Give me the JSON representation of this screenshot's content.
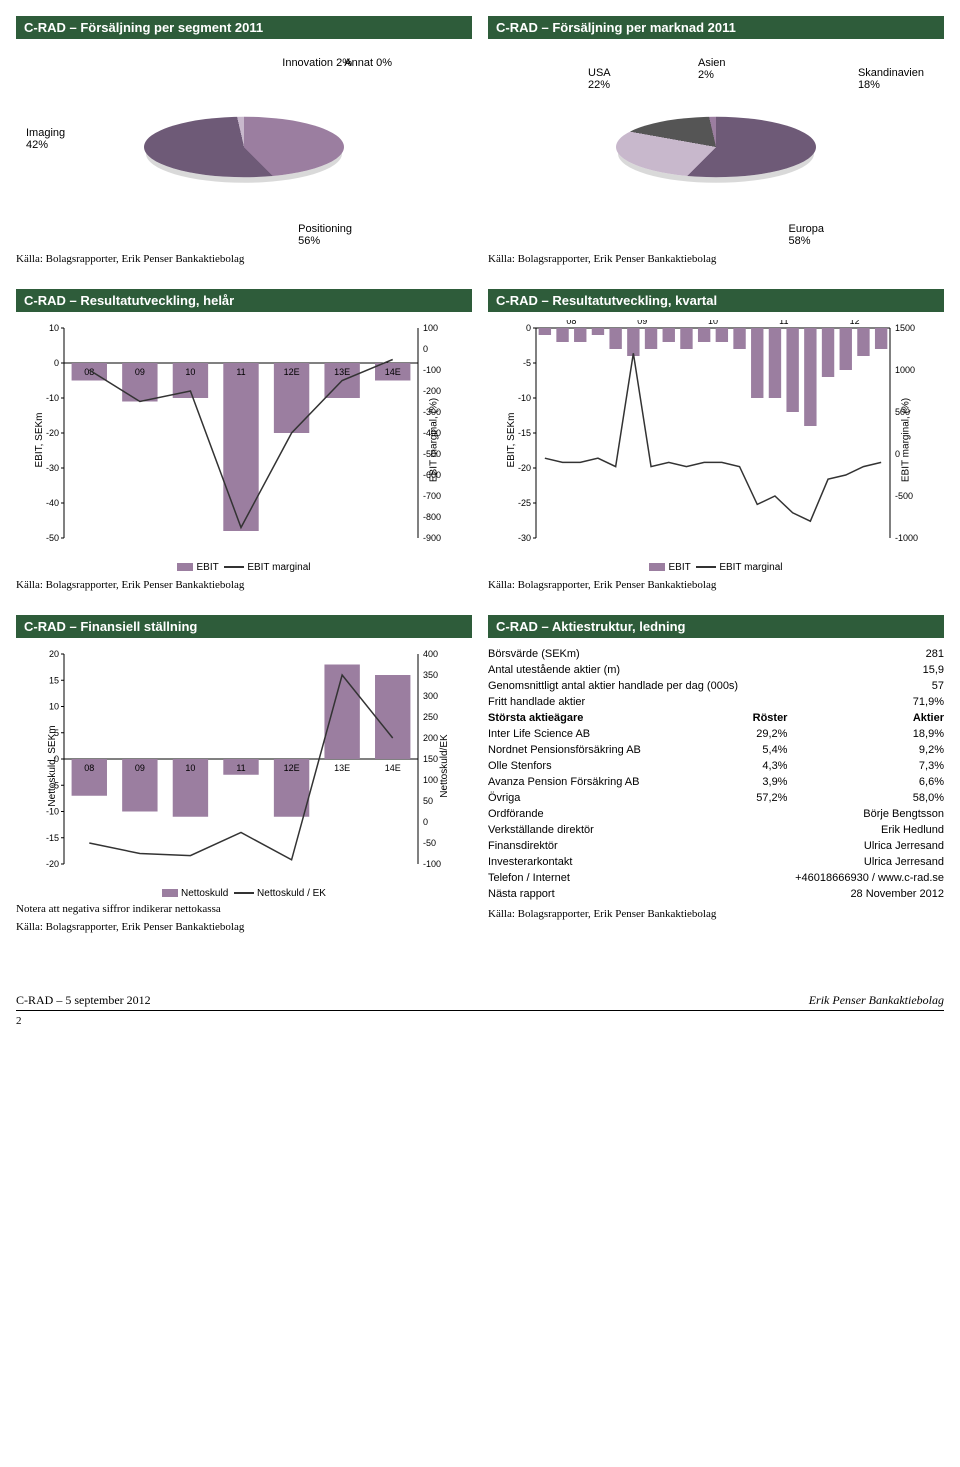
{
  "pie1": {
    "title": "C-RAD – Försäljning per segment 2011",
    "slices": [
      {
        "label": "Imaging",
        "pct": "42%",
        "color": "#9b7ea0"
      },
      {
        "label": "Positioning",
        "pct": "56%",
        "color": "#6e5a77"
      },
      {
        "label": "Innovation",
        "pct": "2%",
        "color": "#c8b8cc"
      },
      {
        "label": "Annat",
        "pct": "0%",
        "color": "#555"
      }
    ],
    "source": "Källa: Bolagsrapporter, Erik Penser Bankaktiebolag"
  },
  "pie2": {
    "title": "C-RAD – Försäljning per marknad 2011",
    "slices": [
      {
        "label": "Europa",
        "pct": "58%",
        "color": "#6e5a77"
      },
      {
        "label": "USA",
        "pct": "22%",
        "color": "#c8b8cc"
      },
      {
        "label": "Skandinavien",
        "pct": "18%",
        "color": "#555"
      },
      {
        "label": "Asien",
        "pct": "2%",
        "color": "#9b7ea0"
      }
    ],
    "source": "Källa: Bolagsrapporter, Erik Penser Bankaktiebolag"
  },
  "chart_annual": {
    "title": "C-RAD – Resultatutveckling, helår",
    "type": "bar+line",
    "xcats": [
      "08",
      "09",
      "10",
      "11",
      "12E",
      "13E",
      "14E"
    ],
    "bars": [
      -5,
      -11,
      -10,
      -48,
      -20,
      -10,
      -5
    ],
    "line": [
      -100,
      -250,
      -200,
      -850,
      -400,
      -150,
      -50
    ],
    "ylim_left": [
      -50,
      10
    ],
    "ytick_left": [
      -50,
      -40,
      -30,
      -20,
      -10,
      0,
      10
    ],
    "ylim_right": [
      -900,
      100
    ],
    "ytick_right": [
      -900,
      -800,
      -700,
      -600,
      -500,
      -400,
      -300,
      -200,
      -100,
      0,
      100
    ],
    "bar_color": "#9b7ea0",
    "line_color": "#333",
    "ylabel_left": "EBIT, SEKm",
    "ylabel_right": "EBIT marginal, (%)",
    "legend": [
      "EBIT",
      "EBIT marginal"
    ],
    "source": "Källa: Bolagsrapporter, Erik Penser Bankaktiebolag"
  },
  "chart_quarter": {
    "title": "C-RAD – Resultatutveckling, kvartal",
    "type": "bar+line",
    "xcats": [
      "08",
      "09",
      "10",
      "11",
      "12"
    ],
    "bars": [
      -1,
      -2,
      -2,
      -1,
      -3,
      -4,
      -3,
      -2,
      -3,
      -2,
      -2,
      -3,
      -10,
      -10,
      -12,
      -14,
      -7,
      -6,
      -4,
      -3
    ],
    "line": [
      -50,
      -100,
      -100,
      -50,
      -150,
      1200,
      -150,
      -100,
      -150,
      -100,
      -100,
      -150,
      -600,
      -500,
      -700,
      -800,
      -300,
      -250,
      -150,
      -100
    ],
    "ylim_left": [
      -30,
      0
    ],
    "ytick_left": [
      -30,
      -25,
      -20,
      -15,
      -10,
      -5,
      0
    ],
    "ylim_right": [
      -1000,
      1500
    ],
    "ytick_right": [
      -1000,
      -500,
      0,
      500,
      1000,
      1500
    ],
    "bar_color": "#9b7ea0",
    "line_color": "#333",
    "ylabel_left": "EBIT, SEKm",
    "ylabel_right": "EBIT marginal, (%)",
    "legend": [
      "EBIT",
      "EBIT marginal"
    ],
    "source": "Källa: Bolagsrapporter, Erik Penser Bankaktiebolag"
  },
  "chart_fin": {
    "title": "C-RAD – Finansiell ställning",
    "type": "bar+line",
    "xcats": [
      "08",
      "09",
      "10",
      "11",
      "12E",
      "13E",
      "14E"
    ],
    "bars": [
      -7,
      -10,
      -11,
      -3,
      -11,
      18,
      16
    ],
    "line": [
      -50,
      -75,
      -80,
      -25,
      -90,
      350,
      200
    ],
    "ylim_left": [
      -20,
      20
    ],
    "ytick_left": [
      -20,
      -15,
      -10,
      -5,
      0,
      5,
      10,
      15,
      20
    ],
    "ylim_right": [
      -100,
      400
    ],
    "ytick_right": [
      -100,
      -50,
      0,
      50,
      100,
      150,
      200,
      250,
      300,
      350,
      400
    ],
    "bar_color": "#9b7ea0",
    "line_color": "#333",
    "ylabel_left": "Nettoskuld, SEKm",
    "ylabel_right": "Nettoskuld/EK",
    "legend": [
      "Nettoskuld",
      "Nettoskuld / EK"
    ],
    "note": "Notera att negativa siffror indikerar nettokassa",
    "source": "Källa: Bolagsrapporter, Erik Penser Bankaktiebolag"
  },
  "stock": {
    "title": "C-RAD – Aktiestruktur, ledning",
    "rows1": [
      [
        "Börsvärde (SEKm)",
        "281"
      ],
      [
        "Antal utestående aktier (m)",
        "15,9"
      ],
      [
        "Genomsnittligt antal aktier handlade per dag (000s)",
        "57"
      ],
      [
        "Fritt handlade aktier",
        "71,9%"
      ]
    ],
    "owners_header": [
      "Största aktieägare",
      "Röster",
      "Aktier"
    ],
    "owners": [
      [
        "Inter Life Science AB",
        "29,2%",
        "18,9%"
      ],
      [
        "Nordnet Pensionsförsäkring AB",
        "5,4%",
        "9,2%"
      ],
      [
        "Olle Stenfors",
        "4,3%",
        "7,3%"
      ],
      [
        "Avanza Pension Försäkring AB",
        "3,9%",
        "6,6%"
      ],
      [
        "Övriga",
        "57,2%",
        "58,0%"
      ]
    ],
    "mgmt": [
      [
        "Ordförande",
        "Börje Bengtsson"
      ],
      [
        "Verkställande direktör",
        "Erik Hedlund"
      ],
      [
        "Finansdirektör",
        "Ulrica Jerresand"
      ],
      [
        "Investerarkontakt",
        "Ulrica Jerresand"
      ],
      [
        "Telefon / Internet",
        "+46018666930 / www.c-rad.se"
      ],
      [
        "Nästa rapport",
        "28 November 2012"
      ]
    ],
    "source": "Källa: Bolagsrapporter, Erik Penser Bankaktiebolag"
  },
  "footer": {
    "left": "C-RAD – 5 september 2012",
    "right": "Erik Penser Bankaktiebolag",
    "page": "2"
  }
}
